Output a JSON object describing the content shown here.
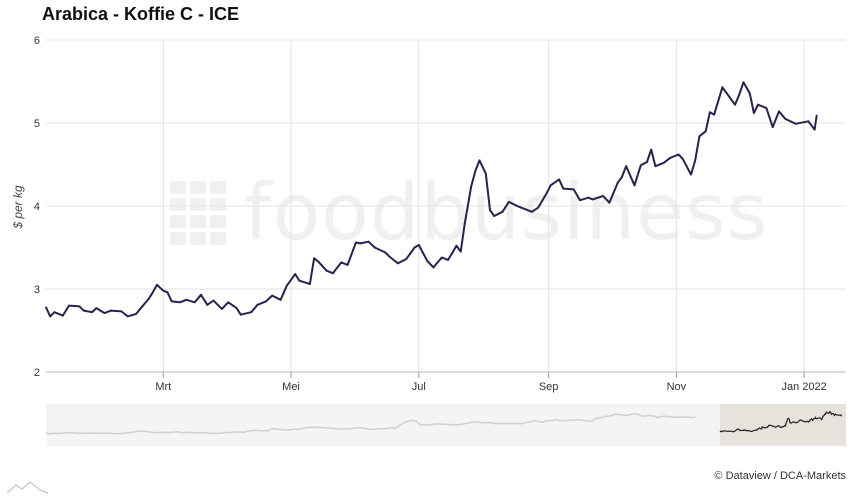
{
  "chart_data": {
    "type": "line",
    "title": "Arabica - Koffie C - ICE",
    "ylabel": "$ per kg",
    "xlabel": "",
    "ylim": [
      2,
      6
    ],
    "yticks": [
      2,
      3,
      4,
      5,
      6
    ],
    "xlim": [
      "2021-01-04",
      "2022-01-21"
    ],
    "xticks": [
      {
        "date": "2021-03-01",
        "label": "Mrt"
      },
      {
        "date": "2021-05-01",
        "label": "Mei"
      },
      {
        "date": "2021-07-01",
        "label": "Jul"
      },
      {
        "date": "2021-09-01",
        "label": "Sep"
      },
      {
        "date": "2021-11-01",
        "label": "Nov"
      },
      {
        "date": "2022-01-01",
        "label": "Jan 2022"
      }
    ],
    "grid": true,
    "series": [
      {
        "color": "#2d1f4f",
        "points": [
          [
            "2021-01-04",
            2.78
          ],
          [
            "2021-01-06",
            2.67
          ],
          [
            "2021-01-08",
            2.72
          ],
          [
            "2021-01-12",
            2.68
          ],
          [
            "2021-01-15",
            2.8
          ],
          [
            "2021-01-20",
            2.79
          ],
          [
            "2021-01-22",
            2.74
          ],
          [
            "2021-01-26",
            2.72
          ],
          [
            "2021-01-28",
            2.77
          ],
          [
            "2021-02-01",
            2.71
          ],
          [
            "2021-02-04",
            2.74
          ],
          [
            "2021-02-09",
            2.73
          ],
          [
            "2021-02-12",
            2.67
          ],
          [
            "2021-02-16",
            2.7
          ],
          [
            "2021-02-19",
            2.79
          ],
          [
            "2021-02-22",
            2.88
          ],
          [
            "2021-02-24",
            2.96
          ],
          [
            "2021-02-26",
            3.05
          ],
          [
            "2021-03-01",
            2.98
          ],
          [
            "2021-03-03",
            2.96
          ],
          [
            "2021-03-05",
            2.85
          ],
          [
            "2021-03-09",
            2.84
          ],
          [
            "2021-03-12",
            2.87
          ],
          [
            "2021-03-16",
            2.84
          ],
          [
            "2021-03-19",
            2.93
          ],
          [
            "2021-03-22",
            2.81
          ],
          [
            "2021-03-25",
            2.86
          ],
          [
            "2021-03-29",
            2.76
          ],
          [
            "2021-04-01",
            2.84
          ],
          [
            "2021-04-05",
            2.77
          ],
          [
            "2021-04-07",
            2.69
          ],
          [
            "2021-04-12",
            2.72
          ],
          [
            "2021-04-15",
            2.81
          ],
          [
            "2021-04-19",
            2.85
          ],
          [
            "2021-04-22",
            2.92
          ],
          [
            "2021-04-26",
            2.87
          ],
          [
            "2021-04-29",
            3.04
          ],
          [
            "2021-05-03",
            3.18
          ],
          [
            "2021-05-05",
            3.1
          ],
          [
            "2021-05-10",
            3.06
          ],
          [
            "2021-05-12",
            3.37
          ],
          [
            "2021-05-14",
            3.33
          ],
          [
            "2021-05-18",
            3.22
          ],
          [
            "2021-05-21",
            3.19
          ],
          [
            "2021-05-25",
            3.32
          ],
          [
            "2021-05-28",
            3.29
          ],
          [
            "2021-06-01",
            3.56
          ],
          [
            "2021-06-03",
            3.55
          ],
          [
            "2021-06-07",
            3.57
          ],
          [
            "2021-06-10",
            3.5
          ],
          [
            "2021-06-15",
            3.44
          ],
          [
            "2021-06-17",
            3.39
          ],
          [
            "2021-06-21",
            3.31
          ],
          [
            "2021-06-25",
            3.36
          ],
          [
            "2021-06-29",
            3.5
          ],
          [
            "2021-07-01",
            3.53
          ],
          [
            "2021-07-05",
            3.34
          ],
          [
            "2021-07-08",
            3.26
          ],
          [
            "2021-07-12",
            3.38
          ],
          [
            "2021-07-15",
            3.35
          ],
          [
            "2021-07-19",
            3.52
          ],
          [
            "2021-07-21",
            3.45
          ],
          [
            "2021-07-23",
            3.79
          ],
          [
            "2021-07-26",
            4.23
          ],
          [
            "2021-07-28",
            4.42
          ],
          [
            "2021-07-30",
            4.55
          ],
          [
            "2021-08-02",
            4.39
          ],
          [
            "2021-08-04",
            3.95
          ],
          [
            "2021-08-06",
            3.88
          ],
          [
            "2021-08-10",
            3.93
          ],
          [
            "2021-08-13",
            4.05
          ],
          [
            "2021-08-17",
            4.0
          ],
          [
            "2021-08-19",
            3.98
          ],
          [
            "2021-08-24",
            3.93
          ],
          [
            "2021-08-27",
            3.98
          ],
          [
            "2021-08-31",
            4.15
          ],
          [
            "2021-09-02",
            4.25
          ],
          [
            "2021-09-06",
            4.32
          ],
          [
            "2021-09-08",
            4.21
          ],
          [
            "2021-09-13",
            4.2
          ],
          [
            "2021-09-16",
            4.07
          ],
          [
            "2021-09-20",
            4.1
          ],
          [
            "2021-09-22",
            4.08
          ],
          [
            "2021-09-27",
            4.12
          ],
          [
            "2021-09-30",
            4.04
          ],
          [
            "2021-10-04",
            4.28
          ],
          [
            "2021-10-06",
            4.35
          ],
          [
            "2021-10-08",
            4.48
          ],
          [
            "2021-10-12",
            4.25
          ],
          [
            "2021-10-15",
            4.49
          ],
          [
            "2021-10-18",
            4.53
          ],
          [
            "2021-10-20",
            4.68
          ],
          [
            "2021-10-22",
            4.48
          ],
          [
            "2021-10-26",
            4.52
          ],
          [
            "2021-10-29",
            4.58
          ],
          [
            "2021-11-02",
            4.62
          ],
          [
            "2021-11-04",
            4.57
          ],
          [
            "2021-11-08",
            4.38
          ],
          [
            "2021-11-10",
            4.55
          ],
          [
            "2021-11-12",
            4.84
          ],
          [
            "2021-11-15",
            4.9
          ],
          [
            "2021-11-17",
            5.13
          ],
          [
            "2021-11-19",
            5.1
          ],
          [
            "2021-11-23",
            5.43
          ],
          [
            "2021-11-25",
            5.36
          ],
          [
            "2021-11-29",
            5.22
          ],
          [
            "2021-12-01",
            5.34
          ],
          [
            "2021-12-03",
            5.49
          ],
          [
            "2021-12-06",
            5.36
          ],
          [
            "2021-12-08",
            5.12
          ],
          [
            "2021-12-10",
            5.22
          ],
          [
            "2021-12-14",
            5.18
          ],
          [
            "2021-12-17",
            4.95
          ],
          [
            "2021-12-20",
            5.14
          ],
          [
            "2021-12-23",
            5.05
          ],
          [
            "2021-12-28",
            4.99
          ],
          [
            "2022-01-03",
            5.02
          ],
          [
            "2022-01-06",
            4.92
          ],
          [
            "2022-01-07",
            5.09
          ]
        ]
      }
    ]
  },
  "credit": "© Dataview / DCA-Markets",
  "watermark_text": "foodbusiness"
}
